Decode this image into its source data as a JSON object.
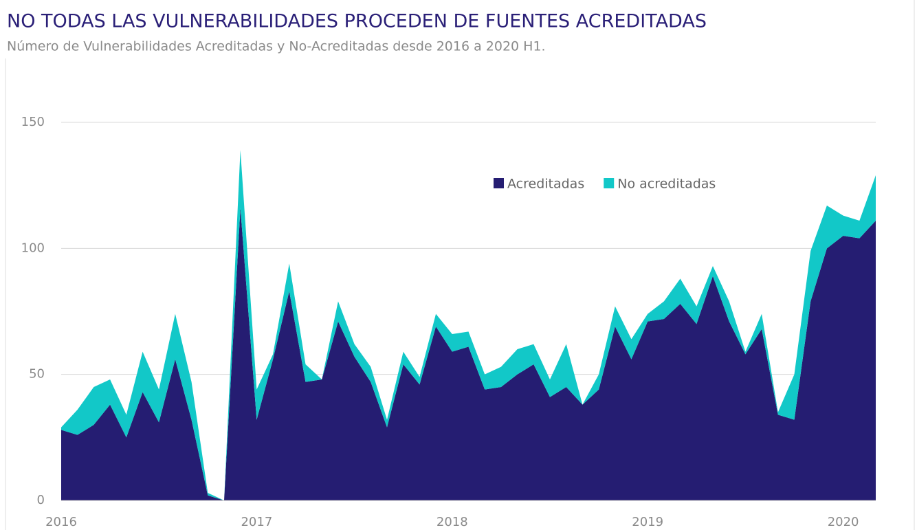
{
  "chart_data": {
    "type": "stacked-area",
    "title": "NO TODAS LAS VULNERABILIDADES PROCEDEN DE FUENTES ACREDITADAS",
    "subtitle": "Número de Vulnerabilidades Acreditadas y No-Acreditadas desde 2016 a 2020 H1.",
    "categories": [
      "2016",
      null,
      null,
      null,
      null,
      null,
      null,
      null,
      null,
      null,
      null,
      null,
      "2017",
      null,
      null,
      null,
      null,
      null,
      null,
      null,
      null,
      null,
      null,
      null,
      "2018",
      null,
      null,
      null,
      null,
      null,
      null,
      null,
      null,
      null,
      null,
      null,
      "2019",
      null,
      null,
      null,
      null,
      null,
      null,
      null,
      null,
      null,
      null,
      null,
      "2020",
      null,
      null
    ],
    "series": [
      {
        "name": "Acreditadas",
        "color": "#251d72",
        "values": [
          28,
          26,
          30,
          38,
          25,
          43,
          31,
          56,
          32,
          2,
          0,
          116,
          32,
          56,
          83,
          47,
          48,
          71,
          57,
          47,
          29,
          54,
          46,
          69,
          59,
          61,
          44,
          45,
          50,
          54,
          41,
          45,
          38,
          44,
          69,
          56,
          71,
          72,
          78,
          70,
          89,
          71,
          58,
          68,
          34,
          32,
          79,
          100,
          105,
          104,
          111
        ]
      },
      {
        "name": "No acreditadas",
        "color": "#12c8c8",
        "values": [
          1,
          10,
          15,
          10,
          9,
          16,
          13,
          18,
          15,
          1,
          0,
          23,
          12,
          2,
          11,
          7,
          0,
          8,
          5,
          6,
          3,
          5,
          3,
          5,
          7,
          6,
          6,
          8,
          10,
          8,
          7,
          17,
          0,
          6,
          8,
          8,
          3,
          7,
          10,
          7,
          4,
          8,
          1,
          6,
          1,
          18,
          20,
          17,
          8,
          7,
          18
        ]
      }
    ],
    "ylim": [
      0,
      150
    ],
    "yticks": [
      0,
      50,
      100,
      150
    ],
    "grid": true,
    "legend": "top-right"
  }
}
